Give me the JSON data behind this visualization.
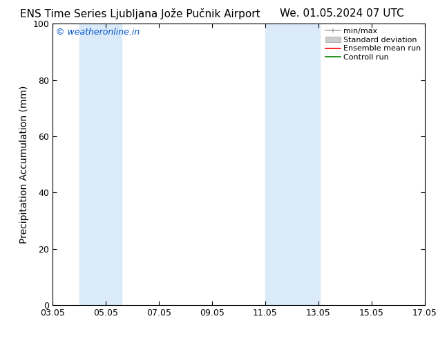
{
  "title_left": "ENS Time Series Ljubljana Jože Pučnik Airport",
  "title_right": "We. 01.05.2024 07 UTC",
  "ylabel": "Precipitation Accumulation (mm)",
  "watermark": "© weatheronline.in",
  "watermark_color": "#0055cc",
  "xlim_dates": [
    "03.05",
    "05.05",
    "07.05",
    "09.05",
    "11.05",
    "13.05",
    "15.05",
    "17.05"
  ],
  "x_positions": [
    3,
    5,
    7,
    9,
    11,
    13,
    15,
    17
  ],
  "xlim": [
    3,
    17
  ],
  "ylim": [
    0,
    100
  ],
  "yticks": [
    0,
    20,
    40,
    60,
    80,
    100
  ],
  "background_color": "#ffffff",
  "shaded_bands": [
    {
      "x_start": 4.0,
      "x_end": 5.6,
      "color": "#daeaf8"
    },
    {
      "x_start": 11.0,
      "x_end": 13.05,
      "color": "#daeaf8"
    }
  ],
  "legend_entries": [
    {
      "label": "min/max",
      "color": "#aaaaaa",
      "style": "line_with_caps"
    },
    {
      "label": "Standard deviation",
      "color": "#cccccc",
      "style": "filled_box"
    },
    {
      "label": "Ensemble mean run",
      "color": "#ff0000",
      "style": "line"
    },
    {
      "label": "Controll run",
      "color": "#008000",
      "style": "line"
    }
  ],
  "title_fontsize": 11,
  "axis_fontsize": 10,
  "tick_fontsize": 9,
  "legend_fontsize": 8,
  "watermark_fontsize": 9
}
